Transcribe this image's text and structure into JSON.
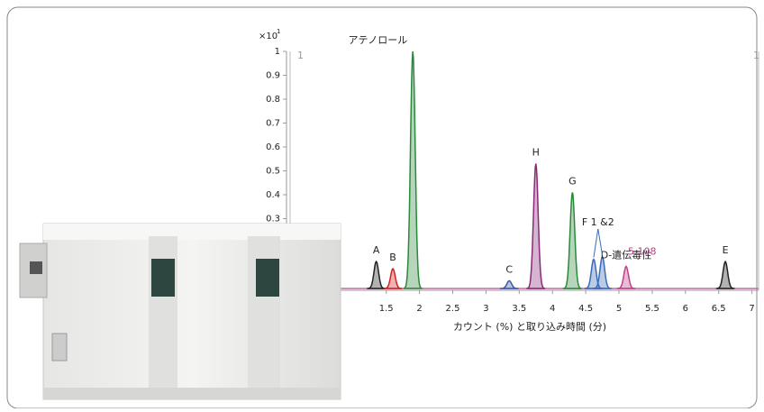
{
  "chart_data": {
    "type": "chromatogram",
    "x_label": "カウント (%) と取り込み時間 (分)",
    "y_multiplier": {
      "base": "×10",
      "exp": "1"
    },
    "panel_markers": [
      "1",
      "1"
    ],
    "xlim": [
      0,
      7.1
    ],
    "ylim": [
      0,
      1
    ],
    "xticks": [
      1.5,
      2,
      2.5,
      3,
      3.5,
      4,
      4.5,
      5,
      5.5,
      6,
      6.5,
      7
    ],
    "yticks": [
      0.3,
      0.4,
      0.5,
      0.6,
      0.7,
      0.8,
      0.9,
      1
    ],
    "peaks": [
      {
        "label": "A",
        "x": 1.35,
        "y": 0.12,
        "color": "#222222"
      },
      {
        "label": "B",
        "x": 1.6,
        "y": 0.09,
        "color": "#d42020"
      },
      {
        "label": "アテノロール",
        "x": 1.9,
        "y": 1,
        "color": "#2a8a3a"
      },
      {
        "label": "C",
        "x": 3.35,
        "y": 0.04,
        "color": "#3a5aa8"
      },
      {
        "label": "H",
        "x": 3.75,
        "y": 0.53,
        "color": "#8a2a7a"
      },
      {
        "label": "G",
        "x": 4.3,
        "y": 0.41,
        "color": "#2a8a3a"
      },
      {
        "label": null,
        "x": 4.62,
        "y": 0.13,
        "color": "#3a6ab8"
      },
      {
        "label": null,
        "x": 4.75,
        "y": 0.14,
        "color": "#3a6ab8"
      },
      {
        "label": "D-遺伝毒性",
        "x": 5.108,
        "y": 0.1,
        "color": "#c0408a"
      },
      {
        "label": "E",
        "x": 6.6,
        "y": 0.12,
        "color": "#222222"
      }
    ],
    "annotations": [
      {
        "text": "F 1 &2",
        "targets": [
          6,
          7
        ]
      },
      {
        "text": "5.108",
        "target": 8,
        "color": "#c0408a"
      }
    ]
  }
}
